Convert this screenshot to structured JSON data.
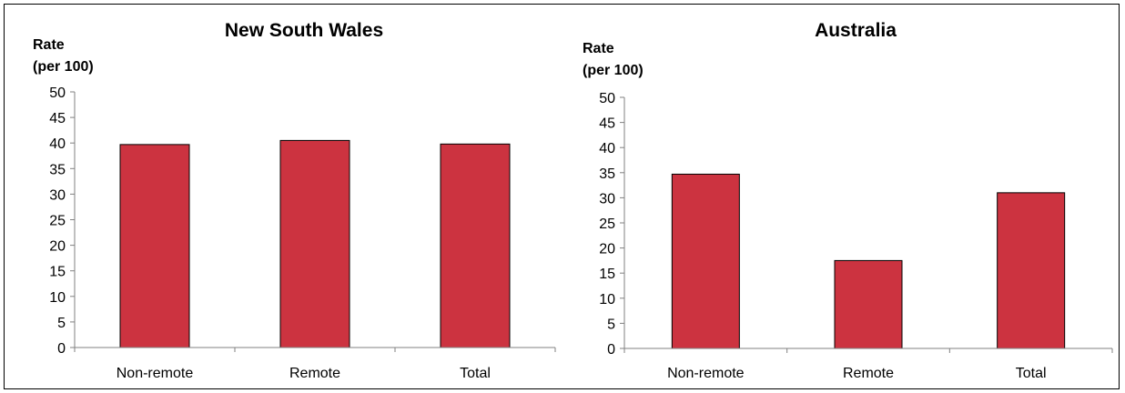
{
  "chart_data": [
    {
      "type": "bar",
      "title": "New South Wales",
      "ylabel": [
        "Rate",
        "(per 100)"
      ],
      "xlabel": "",
      "categories": [
        "Non-remote",
        "Remote",
        "Total"
      ],
      "values": [
        39.7,
        40.5,
        39.8
      ],
      "ylim": [
        0,
        50
      ],
      "yticks": [
        0,
        5,
        10,
        15,
        20,
        25,
        30,
        35,
        40,
        45,
        50
      ],
      "bar_color": "#CC3340",
      "grid": false,
      "legend": "none"
    },
    {
      "type": "bar",
      "title": "Australia",
      "ylabel": [
        "Rate",
        "(per 100)"
      ],
      "xlabel": "",
      "categories": [
        "Non-remote",
        "Remote",
        "Total"
      ],
      "values": [
        34.7,
        17.5,
        31.0
      ],
      "ylim": [
        0,
        50
      ],
      "yticks": [
        0,
        5,
        10,
        15,
        20,
        25,
        30,
        35,
        40,
        45,
        50
      ],
      "bar_color": "#CC3340",
      "grid": false,
      "legend": "none"
    }
  ]
}
